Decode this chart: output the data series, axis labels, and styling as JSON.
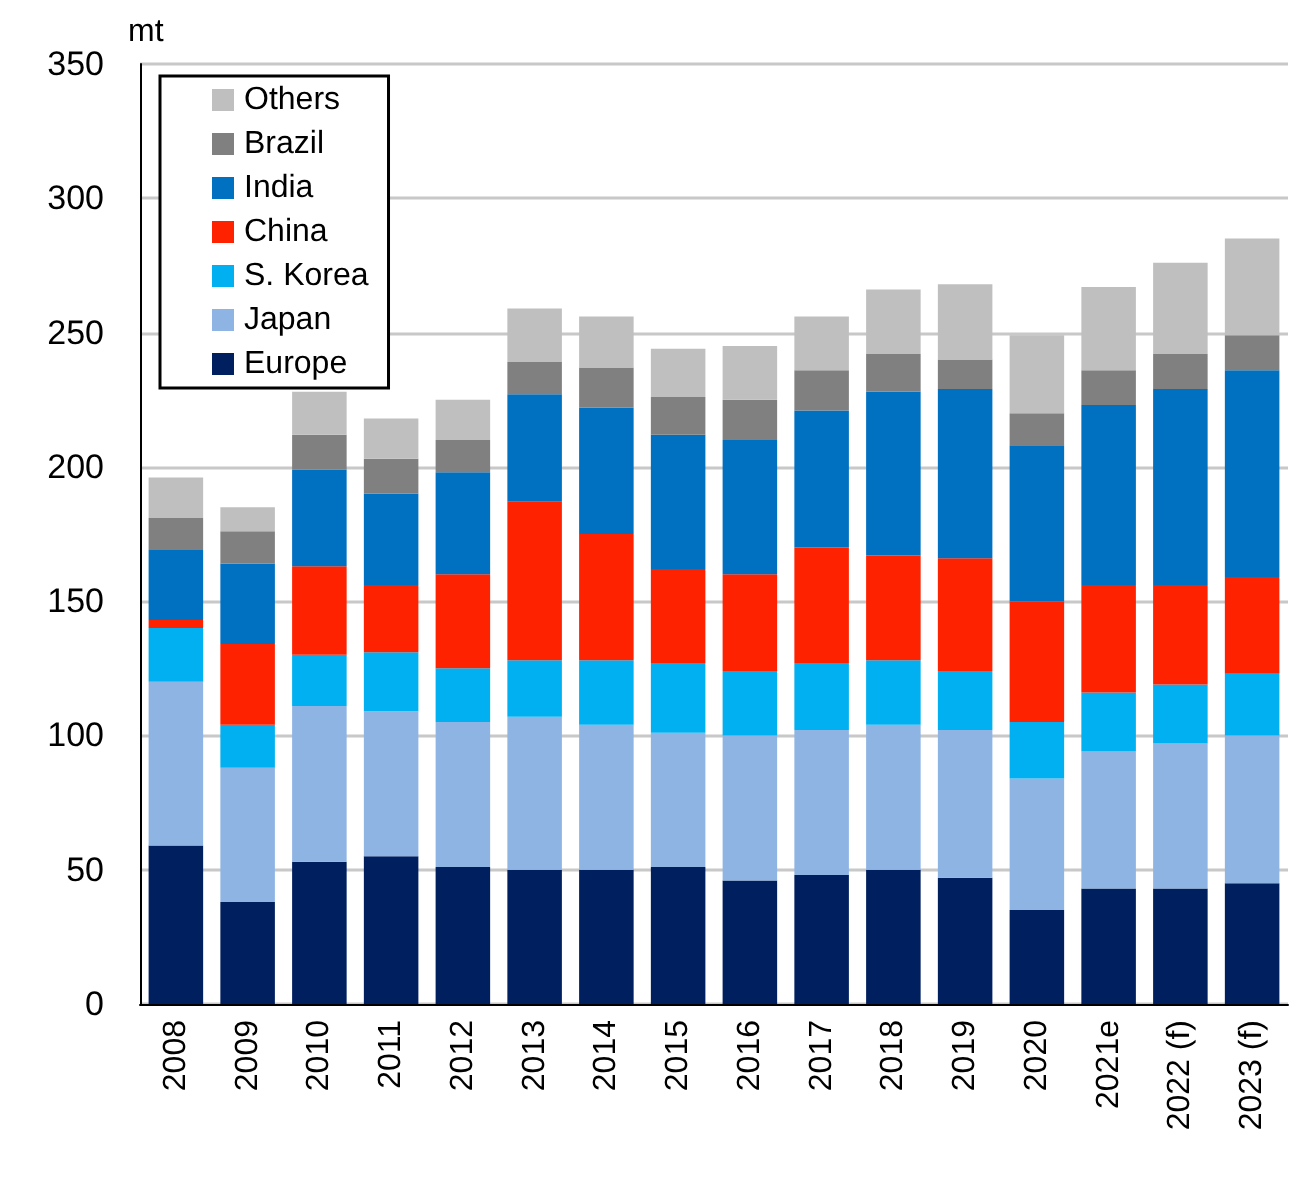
{
  "chart_data": {
    "type": "bar",
    "stacked": true,
    "ylabel": "mt",
    "categories": [
      "2008",
      "2009",
      "2010",
      "2011",
      "2012",
      "2013",
      "2014",
      "2015",
      "2016",
      "2017",
      "2018",
      "2019",
      "2020",
      "2021e",
      "2022 (f)",
      "2023 (f)"
    ],
    "series": [
      {
        "name": "Europe",
        "color": "#001f5f",
        "values": [
          59,
          38,
          53,
          55,
          51,
          50,
          50,
          51,
          46,
          48,
          50,
          47,
          35,
          43,
          43,
          45
        ]
      },
      {
        "name": "Japan",
        "color": "#8eb4e3",
        "values": [
          61,
          50,
          58,
          54,
          54,
          57,
          54,
          50,
          54,
          54,
          54,
          55,
          49,
          51,
          54,
          55
        ]
      },
      {
        "name": "S. Korea",
        "color": "#00b0f0",
        "values": [
          20,
          16,
          19,
          22,
          20,
          21,
          24,
          26,
          24,
          25,
          24,
          22,
          21,
          22,
          22,
          23
        ]
      },
      {
        "name": "China",
        "color": "#ff2200",
        "values": [
          3,
          30,
          33,
          25,
          35,
          59,
          47,
          35,
          36,
          43,
          39,
          42,
          45,
          40,
          37,
          36
        ]
      },
      {
        "name": "India",
        "color": "#0070c0",
        "values": [
          26,
          30,
          36,
          34,
          38,
          40,
          47,
          50,
          50,
          51,
          61,
          63,
          58,
          67,
          73,
          77
        ]
      },
      {
        "name": "Brazil",
        "color": "#808080",
        "values": [
          12,
          12,
          13,
          13,
          12,
          12,
          15,
          14,
          15,
          15,
          14,
          11,
          12,
          13,
          13,
          13
        ]
      },
      {
        "name": "Others",
        "color": "#bfbfbf",
        "values": [
          15,
          9,
          16,
          15,
          15,
          20,
          19,
          18,
          20,
          20,
          24,
          28,
          29,
          31,
          34,
          36
        ]
      }
    ],
    "ylim": [
      0,
      350
    ],
    "yticks": [
      0,
      50,
      100,
      150,
      200,
      250,
      300,
      350
    ],
    "grid": "y",
    "legend": "top left"
  }
}
